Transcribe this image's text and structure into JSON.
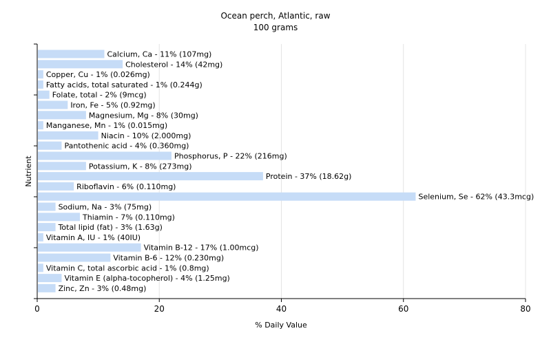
{
  "chart_data": {
    "type": "bar",
    "orientation": "horizontal",
    "title": "Ocean perch, Atlantic, raw",
    "subtitle": "100 grams",
    "xlabel": "% Daily Value",
    "ylabel": "Nutrient",
    "xlim": [
      0,
      80
    ],
    "xticks": [
      "0",
      "20",
      "40",
      "60",
      "80"
    ],
    "grid": true,
    "bar_color": "#c6dcf7",
    "categories": [
      "Calcium, Ca",
      "Cholesterol",
      "Copper, Cu",
      "Fatty acids, total saturated",
      "Folate, total",
      "Iron, Fe",
      "Magnesium, Mg",
      "Manganese, Mn",
      "Niacin",
      "Pantothenic acid",
      "Phosphorus, P",
      "Potassium, K",
      "Protein",
      "Riboflavin",
      "Selenium, Se",
      "Sodium, Na",
      "Thiamin",
      "Total lipid (fat)",
      "Vitamin A, IU",
      "Vitamin B-12",
      "Vitamin B-6",
      "Vitamin C, total ascorbic acid",
      "Vitamin E (alpha-tocopherol)",
      "Zinc, Zn"
    ],
    "values": [
      11,
      14,
      1,
      1,
      2,
      5,
      8,
      1,
      10,
      4,
      22,
      8,
      37,
      6,
      62,
      3,
      7,
      3,
      1,
      17,
      12,
      1,
      4,
      3
    ],
    "labels": [
      "Calcium, Ca - 11% (107mg)",
      "Cholesterol - 14% (42mg)",
      "Copper, Cu - 1% (0.026mg)",
      "Fatty acids, total saturated - 1% (0.244g)",
      "Folate, total - 2% (9mcg)",
      "Iron, Fe - 5% (0.92mg)",
      "Magnesium, Mg - 8% (30mg)",
      "Manganese, Mn - 1% (0.015mg)",
      "Niacin - 10% (2.000mg)",
      "Pantothenic acid - 4% (0.360mg)",
      "Phosphorus, P - 22% (216mg)",
      "Potassium, K - 8% (273mg)",
      "Protein - 37% (18.62g)",
      "Riboflavin - 6% (0.110mg)",
      "Selenium, Se - 62% (43.3mcg)",
      "Sodium, Na - 3% (75mg)",
      "Thiamin - 7% (0.110mg)",
      "Total lipid (fat) - 3% (1.63g)",
      "Vitamin A, IU - 1% (40IU)",
      "Vitamin B-12 - 17% (1.00mcg)",
      "Vitamin B-6 - 12% (0.230mg)",
      "Vitamin C, total ascorbic acid - 1% (0.8mg)",
      "Vitamin E (alpha-tocopherol) - 4% (1.25mg)",
      "Zinc, Zn - 3% (0.48mg)"
    ]
  }
}
